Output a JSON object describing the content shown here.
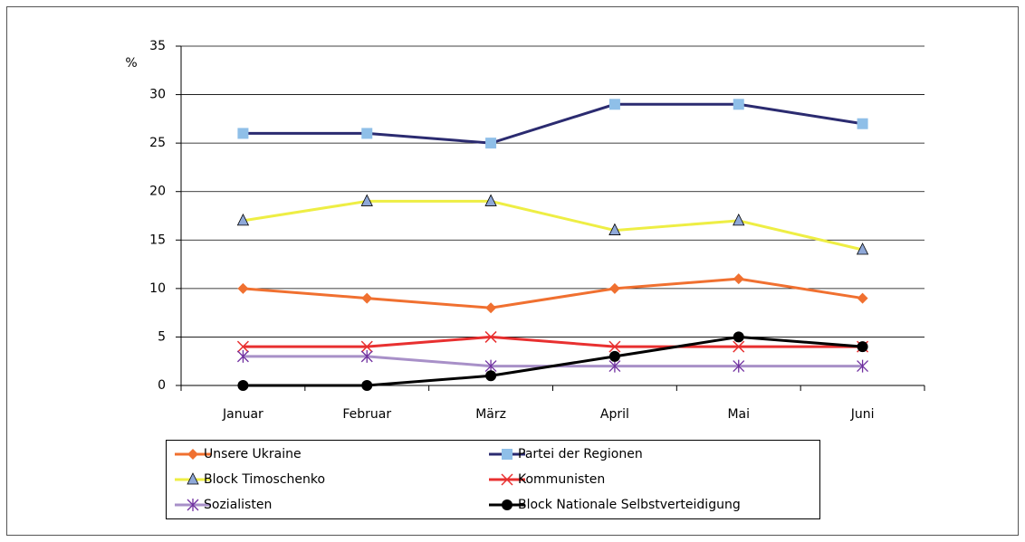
{
  "chart_data": {
    "type": "line",
    "y_label": "%",
    "categories": [
      "Januar",
      "Februar",
      "März",
      "April",
      "Mai",
      "Juni"
    ],
    "ylim": [
      0,
      35
    ],
    "yticks": [
      0,
      5,
      10,
      15,
      20,
      25,
      30,
      35
    ],
    "grid": true,
    "legend": "bottom",
    "series": [
      {
        "name": "Unsere Ukraine",
        "color": "#f07030",
        "marker": "diamond",
        "marker_color": "#f07030",
        "values": [
          10,
          9,
          8,
          10,
          11,
          9
        ]
      },
      {
        "name": "Partei der Regionen",
        "color": "#2b2b70",
        "marker": "square",
        "marker_color": "#8fbfe8",
        "values": [
          26,
          26,
          25,
          29,
          29,
          27
        ]
      },
      {
        "name": "Block Timoschenko",
        "color": "#eeee44",
        "marker": "triangle",
        "marker_color": "#8fa8d8",
        "values": [
          17,
          19,
          19,
          16,
          17,
          14
        ]
      },
      {
        "name": "Kommunisten",
        "color": "#e83030",
        "marker": "x",
        "marker_color": "#e83030",
        "values": [
          4,
          4,
          5,
          4,
          4,
          4
        ]
      },
      {
        "name": "Sozialisten",
        "color": "#a890c8",
        "marker": "star",
        "marker_color": "#7030a0",
        "values": [
          3,
          3,
          2,
          2,
          2,
          2
        ]
      },
      {
        "name": "Block Nationale Selbstverteidigung",
        "color": "#000000",
        "marker": "circle",
        "marker_color": "#000000",
        "values": [
          0,
          0,
          1,
          3,
          5,
          4
        ]
      }
    ]
  }
}
